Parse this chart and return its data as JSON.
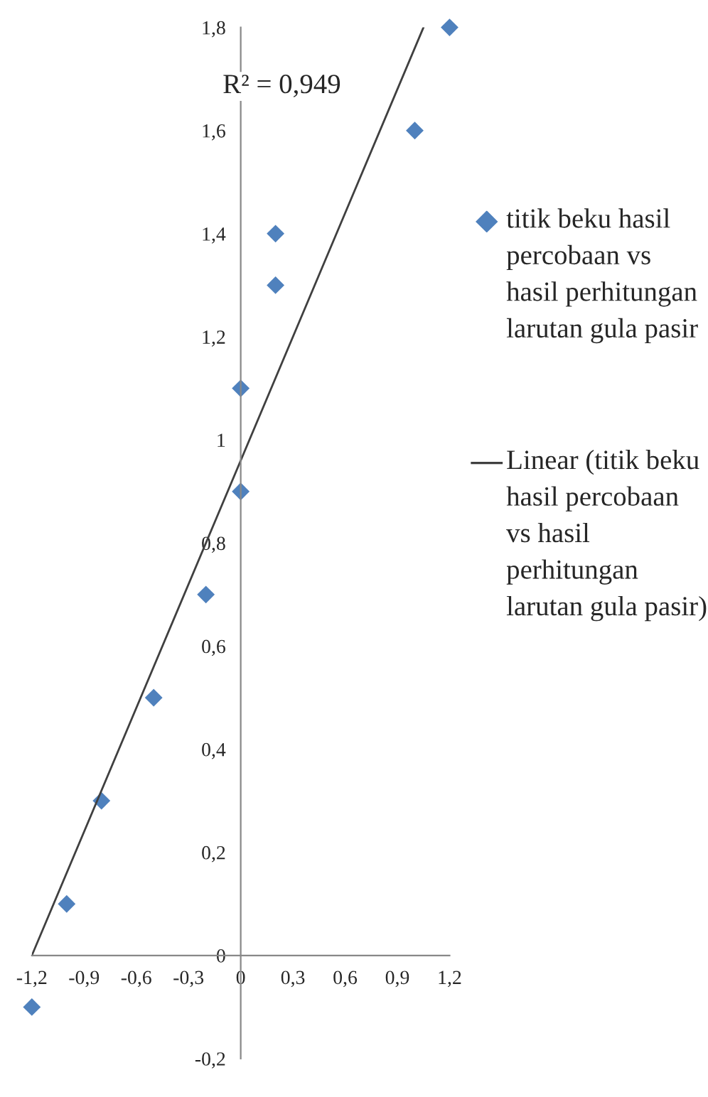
{
  "chart_data": {
    "type": "scatter",
    "series": [
      {
        "name": "titik beku hasil percobaan vs hasil perhitungan larutan gula pasir",
        "color": "#4f81bd",
        "marker": "diamond",
        "x": [
          -1.2,
          -1.0,
          -0.8,
          -0.5,
          -0.2,
          0,
          0,
          0.2,
          0.2,
          1.0,
          1.2
        ],
        "values": [
          -0.1,
          0.1,
          0.3,
          0.5,
          0.7,
          0.9,
          1.1,
          1.3,
          1.4,
          1.6,
          1.8
        ]
      },
      {
        "name": "Linear (titik beku hasil percobaan vs hasil perhitungan larutan gula pasir)",
        "type": "line",
        "color": "#404040",
        "line_style": "solid",
        "x": [
          -1.2,
          1.05
        ],
        "values": [
          0,
          1.8
        ]
      }
    ],
    "annotations": [
      "R² = 0,949"
    ],
    "xlim": [
      -1.2,
      1.2
    ],
    "xticks": [
      {
        "value": -1.2,
        "label": "-1,2"
      },
      {
        "value": -0.9,
        "label": "-0,9"
      },
      {
        "value": -0.6,
        "label": "-0,6"
      },
      {
        "value": -0.3,
        "label": "-0,3"
      },
      0,
      {
        "value": 0.3,
        "label": "0,3"
      },
      {
        "value": 0.6,
        "label": "0,6"
      },
      {
        "value": 0.9,
        "label": "0,9"
      },
      {
        "value": 1.2,
        "label": "1,2"
      }
    ],
    "ylim": [
      -0.2,
      1.8
    ],
    "yticks": [
      {
        "value": -0.2,
        "label": "-0,2"
      },
      0,
      {
        "value": 0.2,
        "label": "0,2"
      },
      {
        "value": 0.4,
        "label": "0,4"
      },
      {
        "value": 0.6,
        "label": "0,6"
      },
      {
        "value": 0.8,
        "label": "0,8"
      },
      1,
      {
        "value": 1.2,
        "label": "1,2"
      },
      {
        "value": 1.4,
        "label": "1,4"
      },
      {
        "value": 1.6,
        "label": "1,6"
      },
      {
        "value": 1.8,
        "label": "1,8"
      }
    ],
    "grid": false,
    "legend": "right"
  }
}
